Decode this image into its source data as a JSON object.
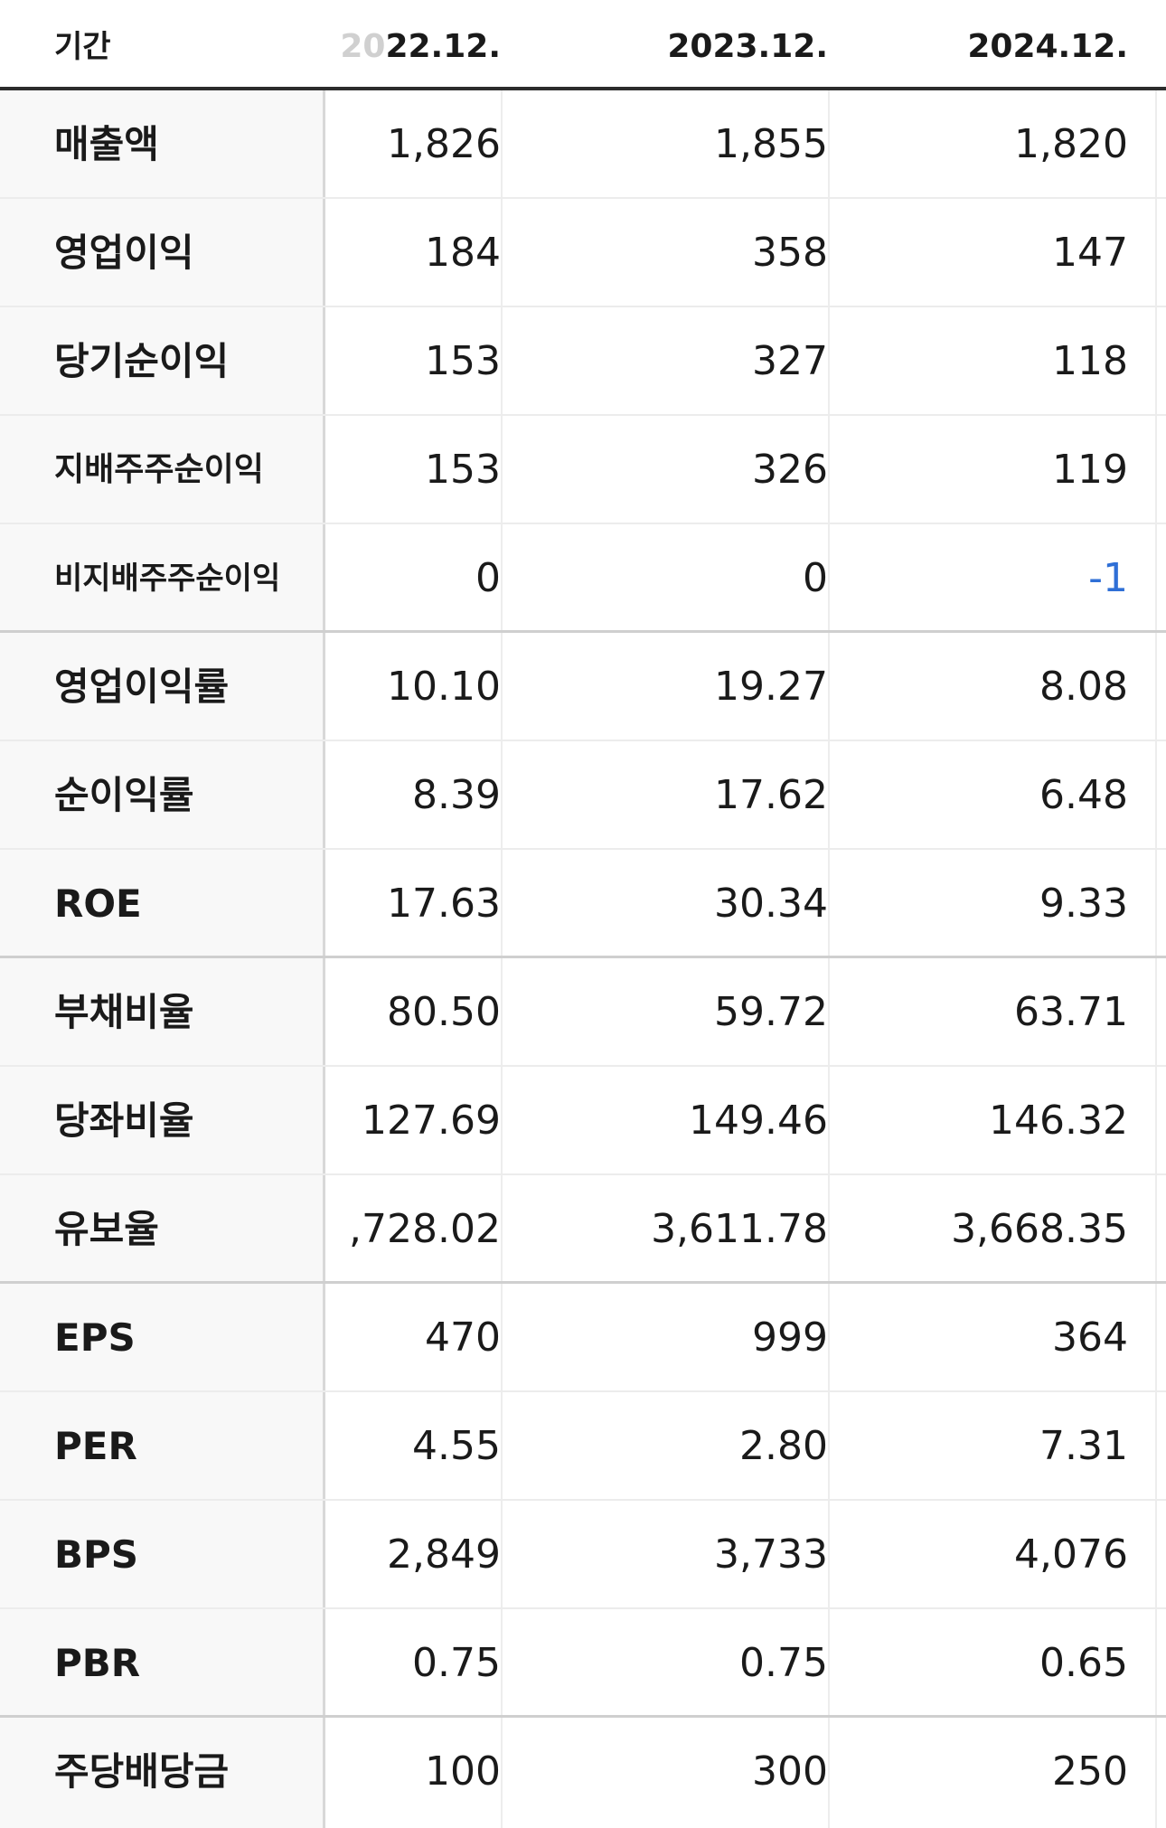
{
  "header": {
    "label": "기간",
    "periods": [
      "2022.12.",
      "2023.12.",
      "2024.12."
    ]
  },
  "rows": [
    {
      "label": "매출액",
      "values": [
        "1,826",
        "1,855",
        "1,820"
      ]
    },
    {
      "label": "영업이익",
      "values": [
        "184",
        "358",
        "147"
      ]
    },
    {
      "label": "당기순이익",
      "values": [
        "153",
        "327",
        "118"
      ]
    },
    {
      "label": "지배주주순이익",
      "values": [
        "153",
        "326",
        "119"
      ]
    },
    {
      "label": "비지배주주순이익",
      "values": [
        "0",
        "0",
        "-1"
      ]
    },
    {
      "label": "영업이익률",
      "values": [
        "10.10",
        "19.27",
        "8.08"
      ]
    },
    {
      "label": "순이익률",
      "values": [
        "8.39",
        "17.62",
        "6.48"
      ]
    },
    {
      "label": "ROE",
      "values": [
        "17.63",
        "30.34",
        "9.33"
      ]
    },
    {
      "label": "부채비율",
      "values": [
        "80.50",
        "59.72",
        "63.71"
      ]
    },
    {
      "label": "당좌비율",
      "values": [
        "127.69",
        "149.46",
        "146.32"
      ]
    },
    {
      "label": "유보율",
      "values": [
        ",728.02",
        "3,611.78",
        "3,668.35"
      ]
    },
    {
      "label": "EPS",
      "values": [
        "470",
        "999",
        "364"
      ]
    },
    {
      "label": "PER",
      "values": [
        "4.55",
        "2.80",
        "7.31"
      ]
    },
    {
      "label": "BPS",
      "values": [
        "2,849",
        "3,733",
        "4,076"
      ]
    },
    {
      "label": "PBR",
      "values": [
        "0.75",
        "0.75",
        "0.65"
      ]
    },
    {
      "label": "주당배당금",
      "values": [
        "100",
        "300",
        "250"
      ]
    }
  ],
  "colors": {
    "negative": "#2f6fd6",
    "label_background": "#f8f8f8",
    "header_rule": "#2c2c2c"
  }
}
